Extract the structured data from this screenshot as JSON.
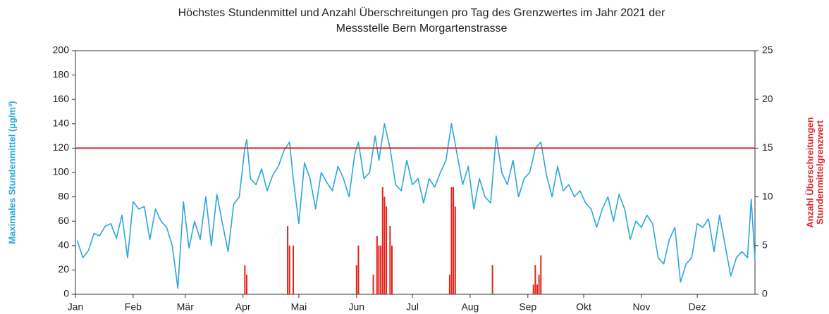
{
  "chart_data": {
    "type": "bar-line",
    "title": [
      "Höchstes Stundenmittel und Anzahl Überschreitungen pro Tag des Grenzwertes im Jahr 2021 der",
      "Messstelle Bern Morgartenstrasse"
    ],
    "ylabel": "Maximales Stundenmittel (µg/m³)",
    "y2label": [
      "Anzahl Überschreitungen",
      "Stundenmittelgrenzwert"
    ],
    "xlim": [
      0,
      365
    ],
    "xticks": [
      {
        "value": 0,
        "label": "Jan"
      },
      {
        "value": 31,
        "label": "Feb"
      },
      {
        "value": 59,
        "label": "Mär"
      },
      {
        "value": 90,
        "label": "Apr"
      },
      {
        "value": 120,
        "label": "Mai"
      },
      {
        "value": 151,
        "label": "Jun"
      },
      {
        "value": 181,
        "label": "Jul"
      },
      {
        "value": 212,
        "label": "Aug"
      },
      {
        "value": 243,
        "label": "Sep"
      },
      {
        "value": 273,
        "label": "Okt"
      },
      {
        "value": 304,
        "label": "Nov"
      },
      {
        "value": 334,
        "label": "Dez"
      }
    ],
    "ylim": [
      0,
      200
    ],
    "yticks": [
      0,
      20,
      40,
      60,
      80,
      100,
      120,
      140,
      160,
      180,
      200
    ],
    "y2lim": [
      0,
      25
    ],
    "y2ticks": [
      0,
      5,
      10,
      15,
      20,
      25
    ],
    "threshold": 120,
    "threshold_color": "#d7262b",
    "grid": false,
    "series": [
      {
        "type": "line",
        "color": "#2aa7dc",
        "x": [
          1,
          4,
          7,
          10,
          13,
          16,
          19,
          22,
          25,
          28,
          31,
          34,
          37,
          40,
          43,
          46,
          49,
          52,
          55,
          58,
          61,
          64,
          67,
          70,
          73,
          76,
          79,
          82,
          85,
          88,
          91,
          92,
          94,
          97,
          100,
          103,
          106,
          109,
          112,
          115,
          117,
          120,
          123,
          126,
          129,
          132,
          135,
          138,
          141,
          144,
          147,
          150,
          152,
          155,
          158,
          161,
          163,
          166,
          169,
          172,
          175,
          178,
          181,
          184,
          187,
          190,
          193,
          196,
          199,
          202,
          205,
          208,
          211,
          214,
          217,
          220,
          223,
          226,
          229,
          232,
          235,
          238,
          241,
          244,
          247,
          250,
          253,
          256,
          259,
          262,
          265,
          268,
          271,
          274,
          277,
          280,
          283,
          286,
          289,
          292,
          295,
          298,
          301,
          304,
          307,
          310,
          313,
          316,
          319,
          322,
          325,
          328,
          331,
          334,
          337,
          340,
          343,
          346,
          349,
          352,
          355,
          358,
          361,
          363,
          365
        ],
        "values": [
          44,
          30,
          36,
          50,
          48,
          56,
          58,
          46,
          65,
          30,
          76,
          70,
          72,
          45,
          70,
          60,
          55,
          40,
          5,
          76,
          38,
          60,
          45,
          80,
          40,
          82,
          58,
          35,
          74,
          80,
          120,
          127,
          95,
          90,
          103,
          85,
          98,
          105,
          118,
          125,
          95,
          58,
          108,
          95,
          70,
          100,
          92,
          85,
          105,
          95,
          80,
          115,
          125,
          95,
          100,
          130,
          110,
          140,
          120,
          90,
          85,
          110,
          90,
          95,
          75,
          95,
          88,
          100,
          110,
          140,
          115,
          90,
          105,
          70,
          95,
          80,
          75,
          130,
          100,
          90,
          110,
          80,
          95,
          100,
          120,
          125,
          98,
          80,
          105,
          85,
          90,
          80,
          85,
          75,
          70,
          55,
          70,
          80,
          60,
          82,
          70,
          45,
          60,
          55,
          65,
          58,
          30,
          25,
          45,
          55,
          10,
          25,
          30,
          58,
          55,
          62,
          35,
          65,
          40,
          15,
          30,
          35,
          30,
          78,
          28
        ]
      },
      {
        "type": "bar",
        "axis": "y2",
        "color": "#e2231a",
        "x": [
          91,
          92,
          114,
          115,
          117,
          151,
          152,
          160,
          162,
          163,
          164,
          165,
          166,
          167,
          169,
          170,
          201,
          202,
          203,
          204,
          224,
          246,
          247,
          248,
          249,
          250
        ],
        "values": [
          3,
          2,
          7,
          5,
          5,
          3,
          5,
          2,
          6,
          5,
          5,
          11,
          10,
          9,
          7,
          5,
          2,
          11,
          11,
          9,
          3,
          1,
          3,
          1,
          2,
          4
        ]
      }
    ]
  }
}
